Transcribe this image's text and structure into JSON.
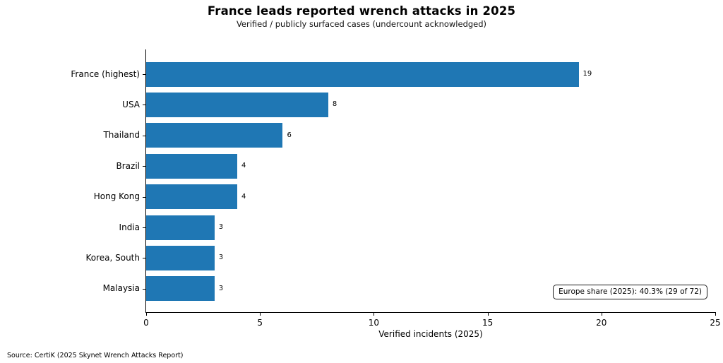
{
  "figure": {
    "source": "Source: CertiK (2025 Skynet Wrench Attacks Report)"
  },
  "chart_data": {
    "type": "bar",
    "orientation": "horizontal",
    "title": "France leads reported wrench attacks in 2025",
    "subtitle": "Verified / publicly surfaced cases (undercount acknowledged)",
    "categories": [
      "France (highest)",
      "USA",
      "Thailand",
      "Brazil",
      "Hong Kong",
      "India",
      "Korea, South",
      "Malaysia"
    ],
    "values": [
      19,
      8,
      6,
      4,
      4,
      3,
      3,
      3
    ],
    "xlabel": "Verified incidents (2025)",
    "ylabel": "",
    "xlim": [
      0,
      25
    ],
    "xticks": [
      0,
      5,
      10,
      15,
      20,
      25
    ],
    "grid": false,
    "legend": null,
    "bar_color": "#1f77b4",
    "value_labels_shown": true,
    "annotation": "Europe share (2025): 40.3% (29 of 72)"
  }
}
